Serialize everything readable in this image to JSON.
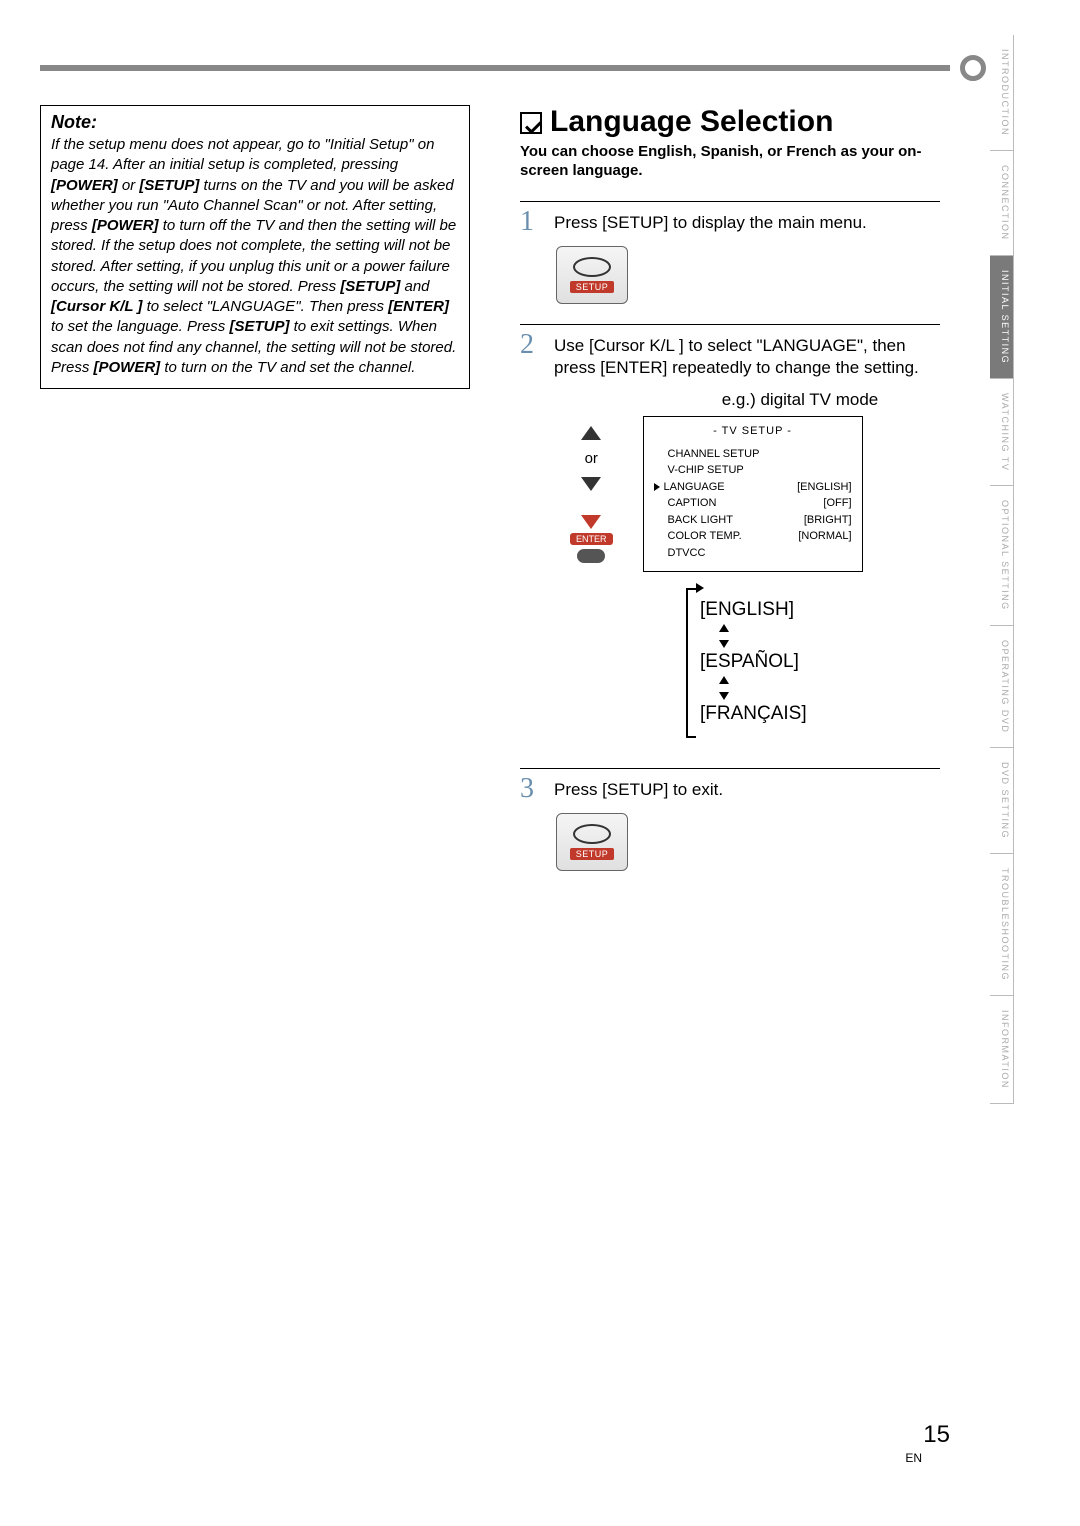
{
  "note": {
    "title": "Note:",
    "body": "If the setup menu does not appear, go to \"Initial Setup\" on page 14. After an initial setup is completed, pressing <b>[POWER]</b> or <b>[SETUP]</b> turns on the TV and you will be asked whether you run \"Auto Channel Scan\" or not. After setting, press <b>[POWER]</b> to turn off the TV and then the setting will be stored. If the setup does not complete, the setting will not be stored. After setting, if you unplug this unit or a power failure occurs, the setting will not be stored. Press <b>[SETUP]</b> and <b>[Cursor K/L ]</b> to select \"LANGUAGE\". Then press <b>[ENTER]</b> to set the language. Press <b>[SETUP]</b> to exit settings. When scan does not find any channel, the setting will not be stored. Press <b>[POWER]</b> to turn on the TV and set the channel."
  },
  "section": {
    "title": "Language Selection",
    "subtitle": "You can choose English, Spanish, or French as your on-screen language."
  },
  "steps": {
    "s1": {
      "num": "1",
      "text": "Press [SETUP] to display the main menu."
    },
    "s2": {
      "num": "2",
      "text": "Use [Cursor K/L ] to select \"LANGUAGE\", then press [ENTER] repeatedly to change the setting."
    },
    "s3": {
      "num": "3",
      "text": "Press [SETUP] to exit."
    }
  },
  "setup_btn": {
    "label": "SETUP"
  },
  "remote": {
    "or": "or",
    "enter": "ENTER"
  },
  "eg_label": "e.g.) digital TV mode",
  "tv_menu": {
    "title": "- TV SETUP -",
    "rows": [
      {
        "label": "CHANNEL SETUP",
        "value": ""
      },
      {
        "label": "V-CHIP SETUP",
        "value": ""
      },
      {
        "label": "LANGUAGE",
        "value": "[ENGLISH]",
        "selected": true
      },
      {
        "label": "CAPTION",
        "value": "[OFF]"
      },
      {
        "label": "BACK LIGHT",
        "value": "[BRIGHT]"
      },
      {
        "label": "COLOR TEMP.",
        "value": "[NORMAL]"
      },
      {
        "label": "DTVCC",
        "value": ""
      }
    ]
  },
  "lang_cycle": {
    "items": [
      "[ENGLISH]",
      "[ESPAÑOL]",
      "[FRANÇAIS]"
    ]
  },
  "tabs": [
    {
      "label": "INTRODUCTION",
      "active": false
    },
    {
      "label": "CONNECTION",
      "active": false
    },
    {
      "label": "INITIAL SETTING",
      "active": true
    },
    {
      "label": "WATCHING TV",
      "active": false
    },
    {
      "label": "OPTIONAL SETTING",
      "active": false
    },
    {
      "label": "OPERATING DVD",
      "active": false
    },
    {
      "label": "DVD SETTING",
      "active": false
    },
    {
      "label": "TROUBLESHOOTING",
      "active": false
    },
    {
      "label": "INFORMATION",
      "active": false
    }
  ],
  "footer": {
    "page": "15",
    "lang": "EN"
  },
  "colors": {
    "rule": "#888888",
    "step_num": "#6a8fae",
    "accent_red": "#c0392b",
    "tab_inactive": "#aaaaaa",
    "tab_active_bg": "#7a7a7a"
  }
}
